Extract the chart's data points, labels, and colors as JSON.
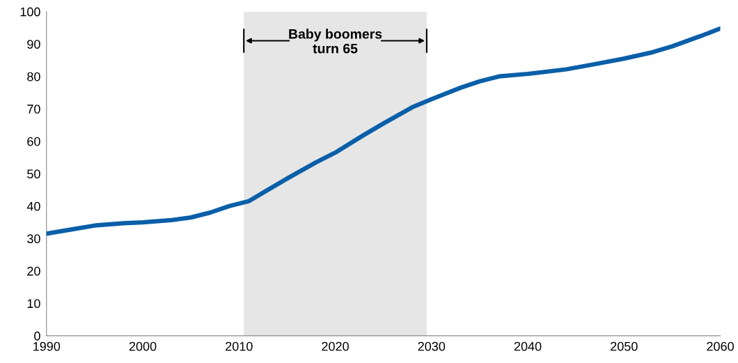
{
  "chart_data": {
    "type": "line",
    "x": [
      1990,
      1993,
      1995,
      1998,
      2000,
      2003,
      2005,
      2007,
      2009,
      2011,
      2013,
      2015,
      2018,
      2020,
      2023,
      2025,
      2028,
      2030,
      2033,
      2035,
      2037,
      2040,
      2044,
      2047,
      2050,
      2053,
      2055,
      2058,
      2060
    ],
    "series": [
      {
        "color": "#0a5fa8",
        "values": [
          31.5,
          33,
          34,
          34.7,
          35,
          35.7,
          36.5,
          38,
          40,
          41.5,
          45,
          48.5,
          53.5,
          56.5,
          62,
          65.5,
          70.5,
          73,
          76.5,
          78.5,
          80,
          80.8,
          82.2,
          83.8,
          85.5,
          87.5,
          89.3,
          92.5,
          94.8
        ]
      }
    ],
    "xlim": [
      1990,
      2060
    ],
    "xticks": [
      1990,
      2000,
      2010,
      2020,
      2030,
      2040,
      2050,
      2060
    ],
    "ylim": [
      0,
      100
    ],
    "yticks": [
      0,
      10,
      20,
      30,
      40,
      50,
      60,
      70,
      80,
      90,
      100
    ],
    "bands": [
      {
        "axis": "x",
        "from": 2010.5,
        "to": 2029.5,
        "color": "#e6e6e6"
      }
    ],
    "annotations": [
      "Baby boomers\nturn 65"
    ],
    "grid": false,
    "legend": false,
    "marker": "none",
    "line_style": "solid"
  }
}
